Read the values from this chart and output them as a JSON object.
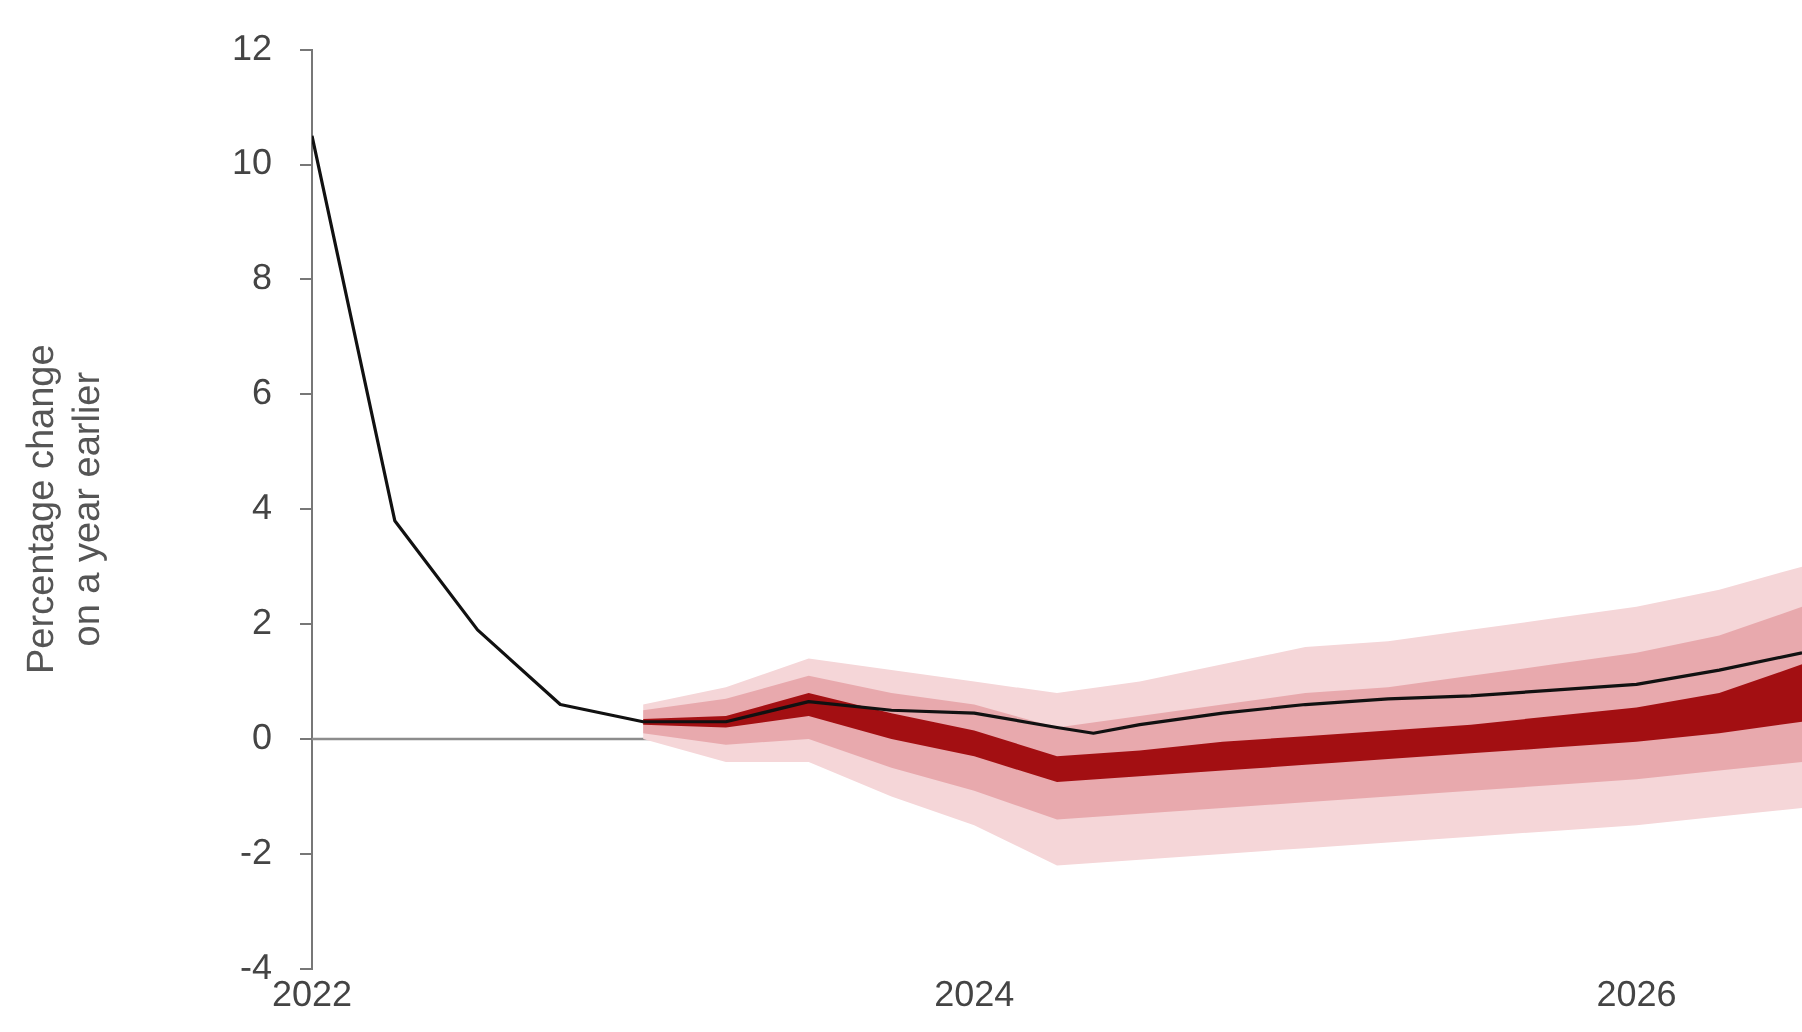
{
  "chart_data": {
    "type": "line",
    "ylabel": "Percentage change on a year earlier",
    "xlim": [
      2022,
      2026.5
    ],
    "xticks": [
      2022,
      2024,
      2026
    ],
    "ylim": [
      -4,
      12
    ],
    "yticks": [
      -4,
      -2,
      0,
      2,
      4,
      6,
      8,
      10,
      12
    ],
    "grid": false,
    "ref_lines": [
      {
        "axis": "y",
        "value": 0,
        "color": "#8c8c8c"
      }
    ],
    "series": [
      {
        "type": "line",
        "color": "#f5d6d8",
        "x": [
          2023,
          2023.25,
          2023.5,
          2023.75,
          2024,
          2024.25,
          2024.5,
          2024.75,
          2025,
          2025.25,
          2025.5,
          2025.75,
          2026,
          2026.25,
          2026.5
        ],
        "values": [
          null,
          null,
          null,
          null,
          null,
          null,
          null,
          null,
          null,
          null,
          null,
          null,
          null,
          null,
          null
        ],
        "lower": [
          0.0,
          -0.4,
          -0.4,
          -1.0,
          -1.5,
          -2.2,
          -2.1,
          -2.0,
          -1.9,
          -1.8,
          -1.7,
          -1.6,
          -1.5,
          -1.35,
          -1.2
        ],
        "upper": [
          0.6,
          0.9,
          1.4,
          1.2,
          1.0,
          0.8,
          1.0,
          1.3,
          1.6,
          1.7,
          1.9,
          2.1,
          2.3,
          2.6,
          3.0
        ]
      },
      {
        "type": "line",
        "color": "#e8a9ad",
        "x": [
          2023,
          2023.25,
          2023.5,
          2023.75,
          2024,
          2024.25,
          2024.5,
          2024.75,
          2025,
          2025.25,
          2025.5,
          2025.75,
          2026,
          2026.25,
          2026.5
        ],
        "values": [
          null,
          null,
          null,
          null,
          null,
          null,
          null,
          null,
          null,
          null,
          null,
          null,
          null,
          null,
          null
        ],
        "lower": [
          0.1,
          -0.1,
          0.0,
          -0.5,
          -0.9,
          -1.4,
          -1.3,
          -1.2,
          -1.1,
          -1.0,
          -0.9,
          -0.8,
          -0.7,
          -0.55,
          -0.4
        ],
        "upper": [
          0.5,
          0.7,
          1.1,
          0.8,
          0.6,
          0.2,
          0.4,
          0.6,
          0.8,
          0.9,
          1.1,
          1.3,
          1.5,
          1.8,
          2.3
        ]
      },
      {
        "type": "line",
        "color": "#a30f12",
        "x": [
          2023,
          2023.25,
          2023.5,
          2023.75,
          2024,
          2024.25,
          2024.5,
          2024.75,
          2025,
          2025.25,
          2025.5,
          2025.75,
          2026,
          2026.25,
          2026.5
        ],
        "values": [
          null,
          null,
          null,
          null,
          null,
          null,
          null,
          null,
          null,
          null,
          null,
          null,
          null,
          null,
          null
        ],
        "lower": [
          0.25,
          0.2,
          0.4,
          0.0,
          -0.3,
          -0.75,
          -0.65,
          -0.55,
          -0.45,
          -0.35,
          -0.25,
          -0.15,
          -0.05,
          0.1,
          0.3
        ],
        "upper": [
          0.35,
          0.4,
          0.8,
          0.45,
          0.15,
          -0.3,
          -0.2,
          -0.05,
          0.05,
          0.15,
          0.25,
          0.4,
          0.55,
          0.8,
          1.3
        ]
      },
      {
        "type": "line",
        "color": "#111111",
        "x": [
          2022,
          2022.25,
          2022.5,
          2022.75,
          2023,
          2023.25,
          2023.5,
          2023.75,
          2024,
          2024.25,
          2024.36,
          2024.5,
          2024.75,
          2025,
          2025.25,
          2025.5,
          2025.75,
          2026,
          2026.25,
          2026.5
        ],
        "values": [
          10.5,
          3.8,
          1.9,
          0.6,
          0.3,
          0.3,
          0.65,
          0.5,
          0.45,
          0.2,
          0.1,
          0.25,
          0.45,
          0.6,
          0.7,
          0.75,
          0.85,
          0.95,
          1.2,
          1.5
        ]
      }
    ]
  }
}
